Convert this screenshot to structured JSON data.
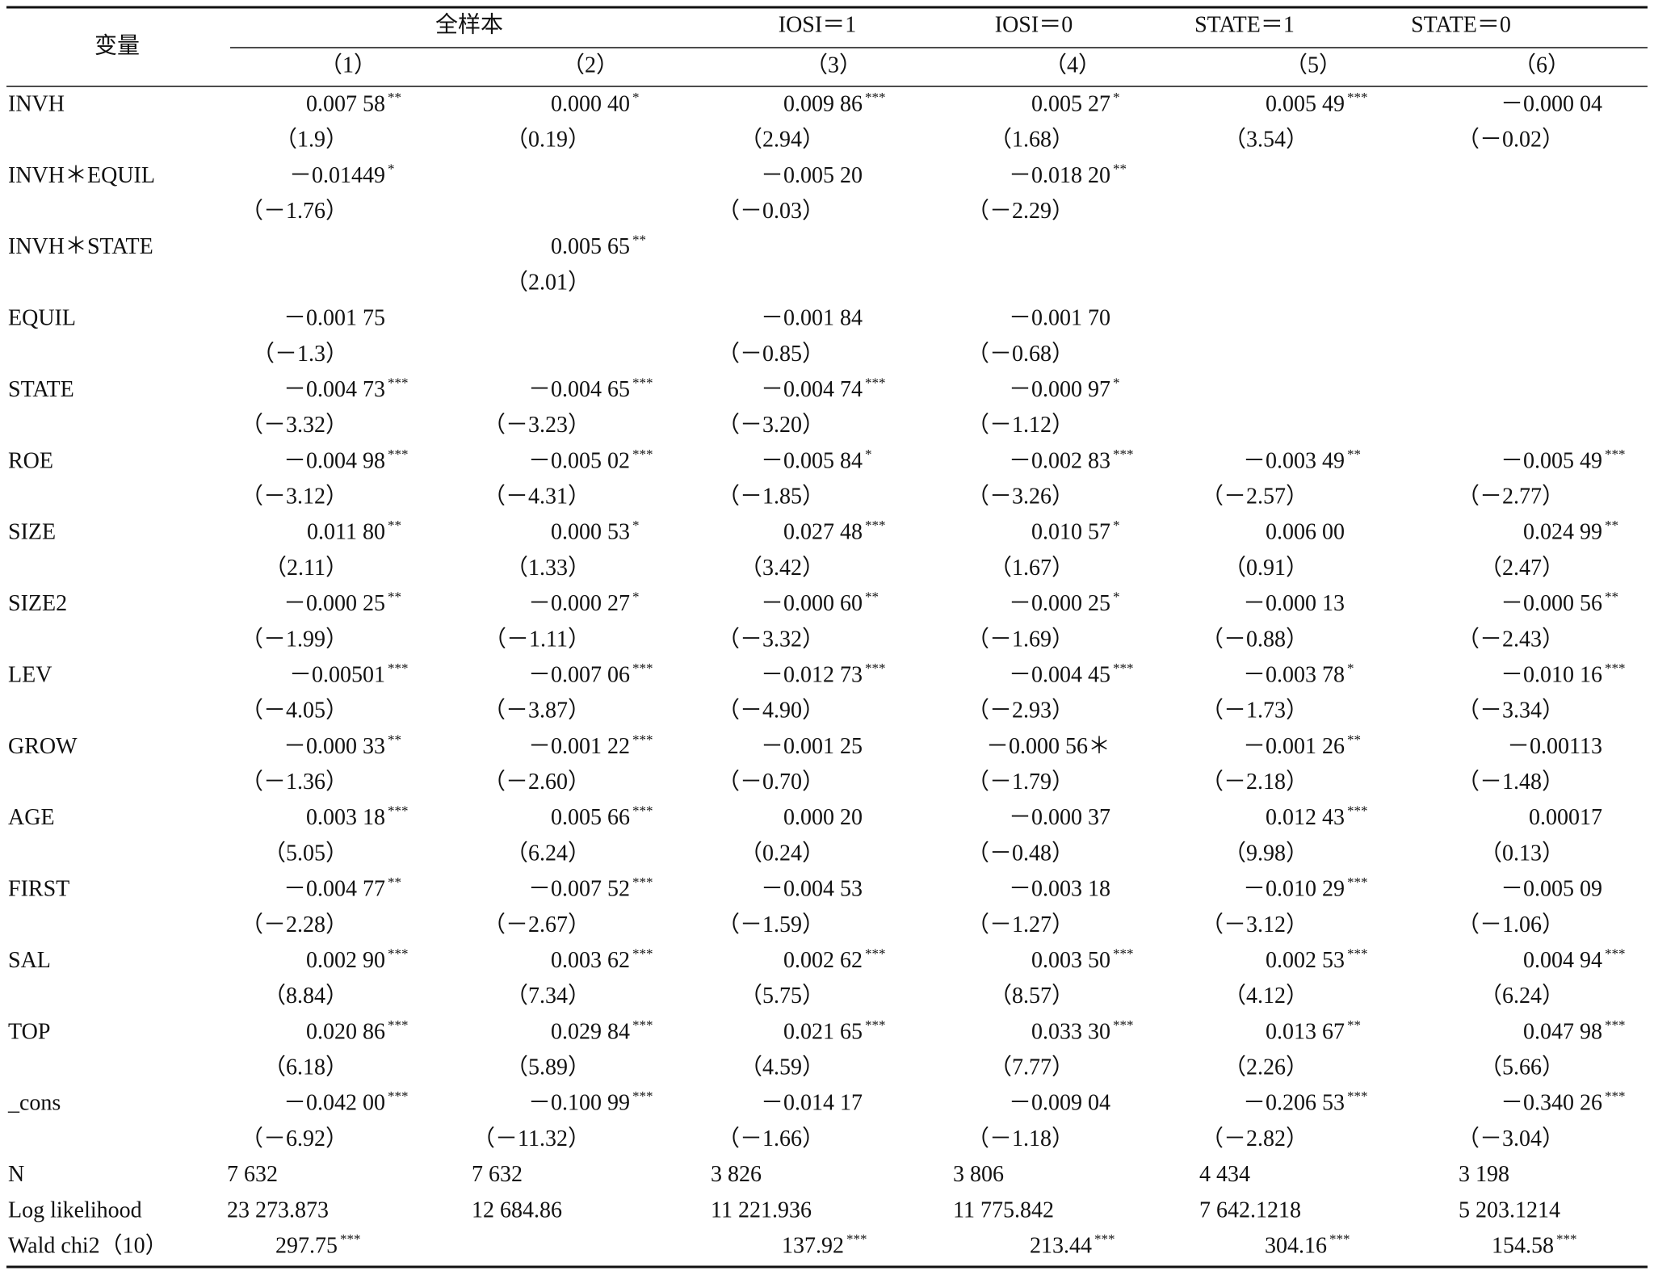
{
  "header": {
    "variable": "变量",
    "groups": [
      "全样本",
      "IOSI＝1",
      "IOSI＝0",
      "STATE＝1",
      "STATE＝0"
    ],
    "columns": [
      "（1）",
      "（2）",
      "（3）",
      "（4）",
      "（5）",
      "（6）"
    ]
  },
  "table": {
    "rows": [
      {
        "label": "INVH",
        "coef": [
          {
            "v": "0.007 58",
            "s": "**"
          },
          {
            "v": "0.000 40",
            "s": "*"
          },
          {
            "v": "0.009 86",
            "s": "***"
          },
          {
            "v": "0.005 27",
            "s": "*"
          },
          {
            "v": "0.005 49",
            "s": "***"
          },
          {
            "v": "－0.000 04"
          }
        ],
        "t": [
          "（1.9）",
          "（0.19）",
          "（2.94）",
          "（1.68）",
          "（3.54）",
          "（－0.02）"
        ]
      },
      {
        "label": "INVH＊EQUIL",
        "coef": [
          {
            "v": "－0.01449",
            "s": "*"
          },
          null,
          {
            "v": "－0.005 20"
          },
          {
            "v": "－0.018 20",
            "s": "**"
          },
          null,
          null
        ],
        "t": [
          "（－1.76）",
          null,
          "（－0.03）",
          "（－2.29）",
          null,
          null
        ]
      },
      {
        "label": "INVH＊STATE",
        "coef": [
          null,
          {
            "v": "0.005 65",
            "s": "**"
          },
          null,
          null,
          null,
          null
        ],
        "t": [
          null,
          "（2.01）",
          null,
          null,
          null,
          null
        ]
      },
      {
        "label": "EQUIL",
        "coef": [
          {
            "v": "－0.001 75"
          },
          null,
          {
            "v": "－0.001 84"
          },
          {
            "v": "－0.001 70"
          },
          null,
          null
        ],
        "t": [
          "（－1.3）",
          null,
          "（－0.85）",
          "（－0.68）",
          null,
          null
        ]
      },
      {
        "label": "STATE",
        "coef": [
          {
            "v": "－0.004 73",
            "s": "***"
          },
          {
            "v": "－0.004 65",
            "s": "***"
          },
          {
            "v": "－0.004 74",
            "s": "***"
          },
          {
            "v": "－0.000 97",
            "s": "*"
          },
          null,
          null
        ],
        "t": [
          "（－3.32）",
          "（－3.23）",
          "（－3.20）",
          "（－1.12）",
          null,
          null
        ]
      },
      {
        "label": "ROE",
        "coef": [
          {
            "v": "－0.004 98",
            "s": "***"
          },
          {
            "v": "－0.005 02",
            "s": "***"
          },
          {
            "v": "－0.005 84",
            "s": "*"
          },
          {
            "v": "－0.002 83",
            "s": "***"
          },
          {
            "v": "－0.003 49",
            "s": "**"
          },
          {
            "v": "－0.005 49",
            "s": "***"
          }
        ],
        "t": [
          "（－3.12）",
          "（－4.31）",
          "（－1.85）",
          "（－3.26）",
          "（－2.57）",
          "（－2.77）"
        ]
      },
      {
        "label": "SIZE",
        "coef": [
          {
            "v": "0.011 80",
            "s": "**"
          },
          {
            "v": "0.000 53",
            "s": "*"
          },
          {
            "v": "0.027 48",
            "s": "***"
          },
          {
            "v": "0.010 57",
            "s": "*"
          },
          {
            "v": "0.006 00"
          },
          {
            "v": "0.024 99",
            "s": "**"
          }
        ],
        "t": [
          "（2.11）",
          "（1.33）",
          "（3.42）",
          "（1.67）",
          "（0.91）",
          "（2.47）"
        ]
      },
      {
        "label": "SIZE2",
        "coef": [
          {
            "v": "－0.000 25",
            "s": "**"
          },
          {
            "v": "－0.000 27",
            "s": "*"
          },
          {
            "v": "－0.000 60",
            "s": "**"
          },
          {
            "v": "－0.000 25",
            "s": "*"
          },
          {
            "v": "－0.000 13"
          },
          {
            "v": "－0.000 56",
            "s": "**"
          }
        ],
        "t": [
          "（－1.99）",
          "（－1.11）",
          "（－3.32）",
          "（－1.69）",
          "（－0.88）",
          "（－2.43）"
        ]
      },
      {
        "label": "LEV",
        "coef": [
          {
            "v": "－0.00501",
            "s": "***"
          },
          {
            "v": "－0.007 06",
            "s": "***"
          },
          {
            "v": "－0.012 73",
            "s": "***"
          },
          {
            "v": "－0.004 45",
            "s": "***"
          },
          {
            "v": "－0.003 78",
            "s": "*"
          },
          {
            "v": "－0.010 16",
            "s": "***"
          }
        ],
        "t": [
          "（－4.05）",
          "（－3.87）",
          "（－4.90）",
          "（－2.93）",
          "（－1.73）",
          "（－3.34）"
        ]
      },
      {
        "label": "GROW",
        "coef": [
          {
            "v": "－0.000 33",
            "s": "**"
          },
          {
            "v": "－0.001 22",
            "s": "***"
          },
          {
            "v": "－0.001 25"
          },
          {
            "v": "－0.000 56＊"
          },
          {
            "v": "－0.001 26",
            "s": "**"
          },
          {
            "v": "－0.00113"
          }
        ],
        "t": [
          "（－1.36）",
          "（－2.60）",
          "（－0.70）",
          "（－1.79）",
          "（－2.18）",
          "（－1.48）"
        ]
      },
      {
        "label": "AGE",
        "coef": [
          {
            "v": "0.003 18",
            "s": "***"
          },
          {
            "v": "0.005 66",
            "s": "***"
          },
          {
            "v": "0.000 20"
          },
          {
            "v": "－0.000 37"
          },
          {
            "v": "0.012 43",
            "s": "***"
          },
          {
            "v": "0.00017"
          }
        ],
        "t": [
          "（5.05）",
          "（6.24）",
          "（0.24）",
          "（－0.48）",
          "（9.98）",
          "（0.13）"
        ]
      },
      {
        "label": "FIRST",
        "coef": [
          {
            "v": "－0.004 77",
            "s": "**"
          },
          {
            "v": "－0.007 52",
            "s": "***"
          },
          {
            "v": "－0.004 53"
          },
          {
            "v": "－0.003 18"
          },
          {
            "v": "－0.010 29",
            "s": "***"
          },
          {
            "v": "－0.005 09"
          }
        ],
        "t": [
          "（－2.28）",
          "（－2.67）",
          "（－1.59）",
          "（－1.27）",
          "（－3.12）",
          "（－1.06）"
        ]
      },
      {
        "label": "SAL",
        "coef": [
          {
            "v": "0.002 90",
            "s": "***"
          },
          {
            "v": "0.003 62",
            "s": "***"
          },
          {
            "v": "0.002 62",
            "s": "***"
          },
          {
            "v": "0.003 50",
            "s": "***"
          },
          {
            "v": "0.002 53",
            "s": "***"
          },
          {
            "v": "0.004 94",
            "s": "***"
          }
        ],
        "t": [
          "（8.84）",
          "（7.34）",
          "（5.75）",
          "（8.57）",
          "（4.12）",
          "（6.24）"
        ]
      },
      {
        "label": "TOP",
        "coef": [
          {
            "v": "0.020 86",
            "s": "***"
          },
          {
            "v": "0.029 84",
            "s": "***"
          },
          {
            "v": "0.021 65",
            "s": "***"
          },
          {
            "v": "0.033 30",
            "s": "***"
          },
          {
            "v": "0.013 67",
            "s": "**"
          },
          {
            "v": "0.047 98",
            "s": "***"
          }
        ],
        "t": [
          "（6.18）",
          "（5.89）",
          "（4.59）",
          "（7.77）",
          "（2.26）",
          "（5.66）"
        ]
      },
      {
        "label": "_cons",
        "coef": [
          {
            "v": "－0.042 00",
            "s": "***"
          },
          {
            "v": "－0.100 99",
            "s": "***"
          },
          {
            "v": "－0.014 17"
          },
          {
            "v": "－0.009 04"
          },
          {
            "v": "－0.206 53",
            "s": "***"
          },
          {
            "v": "－0.340 26",
            "s": "***"
          }
        ],
        "t": [
          "（－6.92）",
          "（－11.32）",
          "（－1.66）",
          "（－1.18）",
          "（－2.82）",
          "（－3.04）"
        ]
      }
    ],
    "stats": [
      {
        "label": "N",
        "cells": [
          "7 632",
          "7 632",
          "3 826",
          "3 806",
          "4 434",
          "3 198"
        ]
      },
      {
        "label": "Log likelihood",
        "cells": [
          "23 273.873",
          "12 684.86",
          "11 221.936",
          "11 775.842",
          "7 642.1218",
          "5 203.1214"
        ]
      },
      {
        "label": "Wald chi2（10）",
        "cells": [
          {
            "v": "297.75",
            "s": "***"
          },
          null,
          {
            "v": "137.92",
            "s": "***"
          },
          {
            "v": "213.44",
            "s": "***"
          },
          {
            "v": "304.16",
            "s": "***"
          },
          {
            "v": "154.58",
            "s": "***"
          }
        ]
      }
    ]
  }
}
